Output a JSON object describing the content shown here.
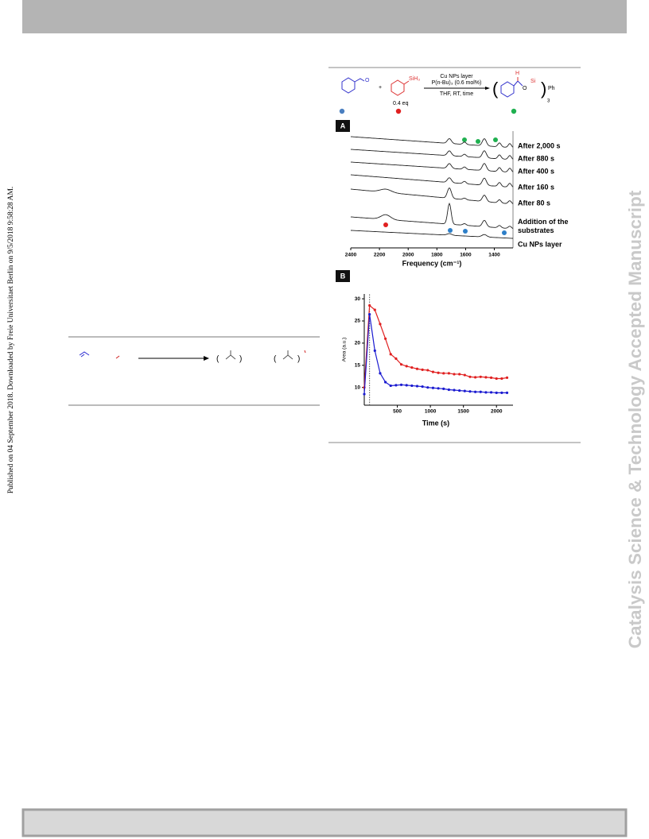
{
  "sidebar": "Published on 04 September 2018. Downloaded by Freie Universitaet Berlin on 9/5/2018 9:58:28 AM.",
  "watermark": "Catalysis Science & Technology Accepted Manuscript",
  "left_scheme": {
    "brackets": [
      "(",
      ")",
      "(",
      ")"
    ]
  },
  "figure": {
    "scheme": {
      "conditions": [
        "Cu NPs layer",
        "P(n-Bu)₃ (0.6 mol%)",
        "THF, RT, time"
      ],
      "equivalents": "0.4 eq",
      "silane": "SiH₃",
      "plus": "+",
      "product": {
        "open": "(",
        "close": ")",
        "h": "H",
        "o": "O",
        "si": "Si",
        "ph": "Ph",
        "n": "3"
      }
    },
    "panel_a": {
      "label": "A",
      "traces": [
        "After 2,000 s",
        "After 880 s",
        "After 400 s",
        "After 160 s",
        "After 80 s",
        "Addition of the substrates",
        "Cu NPs layer"
      ],
      "xlabel": "Frequency (cm⁻¹)",
      "xlim": [
        2400,
        1270
      ],
      "xticks": [
        2400,
        2200,
        2000,
        1800,
        1600,
        1400
      ]
    },
    "panel_b": {
      "chart_data": {
        "type": "line",
        "label": "B",
        "xlabel": "Time (s)",
        "ylabel": "Area (a.u.)",
        "xlim": [
          0,
          2250
        ],
        "ylim": [
          6,
          31
        ],
        "xticks": [
          500,
          1000,
          1500,
          2000
        ],
        "yticks": [
          10,
          15,
          20,
          25,
          30
        ],
        "vline": 80,
        "x": [
          0,
          80,
          160,
          240,
          320,
          400,
          480,
          560,
          640,
          720,
          800,
          880,
          960,
          1040,
          1120,
          1200,
          1280,
          1360,
          1440,
          1520,
          1600,
          1680,
          1760,
          1840,
          1920,
          2000,
          2080,
          2160
        ],
        "series": [
          {
            "color": "#e02020",
            "values": [
              10,
              28.5,
              27.5,
              24.3,
              21,
              17.5,
              16.5,
              15.2,
              14.8,
              14.5,
              14.2,
              14,
              13.9,
              13.5,
              13.3,
              13.2,
              13.2,
              13,
              13,
              12.8,
              12.4,
              12.3,
              12.4,
              12.3,
              12.2,
              12,
              12,
              12.2
            ]
          },
          {
            "color": "#1a1ad0",
            "values": [
              8.5,
              26.5,
              18.3,
              13.2,
              11.2,
              10.4,
              10.5,
              10.6,
              10.5,
              10.4,
              10.3,
              10.2,
              10,
              9.9,
              9.8,
              9.7,
              9.5,
              9.4,
              9.3,
              9.2,
              9.1,
              9,
              9,
              8.9,
              8.9,
              8.8,
              8.8,
              8.8
            ]
          }
        ]
      }
    }
  }
}
